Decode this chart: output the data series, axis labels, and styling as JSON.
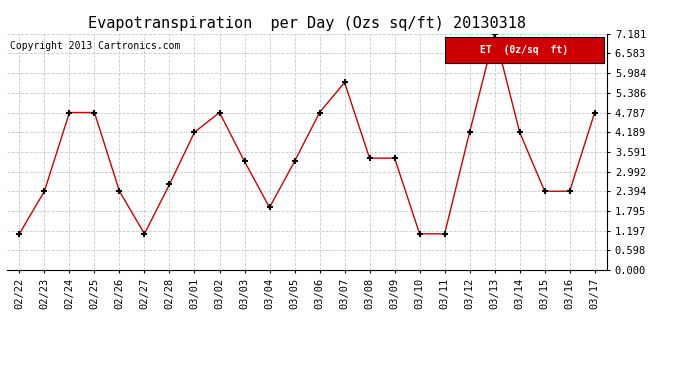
{
  "title": "Evapotranspiration  per Day (Ozs sq/ft) 20130318",
  "copyright": "Copyright 2013 Cartronics.com",
  "legend_label": "ET  (0z/sq  ft)",
  "dates": [
    "02/22",
    "02/23",
    "02/24",
    "02/25",
    "02/26",
    "02/27",
    "02/28",
    "03/01",
    "03/02",
    "03/03",
    "03/04",
    "03/05",
    "03/06",
    "03/07",
    "03/08",
    "03/09",
    "03/10",
    "03/11",
    "03/12",
    "03/13",
    "03/14",
    "03/15",
    "03/16",
    "03/17"
  ],
  "values": [
    1.1,
    2.394,
    4.787,
    4.787,
    2.394,
    1.1,
    2.6,
    4.189,
    4.787,
    3.3,
    1.9,
    3.3,
    4.787,
    5.7,
    3.4,
    3.4,
    1.1,
    1.1,
    4.189,
    7.181,
    4.189,
    2.394,
    2.394,
    4.787
  ],
  "ylim": [
    0.0,
    7.181
  ],
  "yticks": [
    0.0,
    0.598,
    1.197,
    1.795,
    2.394,
    2.992,
    3.591,
    4.189,
    4.787,
    5.386,
    5.984,
    6.583,
    7.181
  ],
  "line_color": "#cc0000",
  "marker_color": "#000000",
  "bg_color": "#ffffff",
  "grid_color": "#bbbbbb",
  "title_fontsize": 11,
  "copyright_fontsize": 7,
  "tick_fontsize": 7.5,
  "legend_bg": "#cc0000",
  "legend_fg": "#ffffff"
}
